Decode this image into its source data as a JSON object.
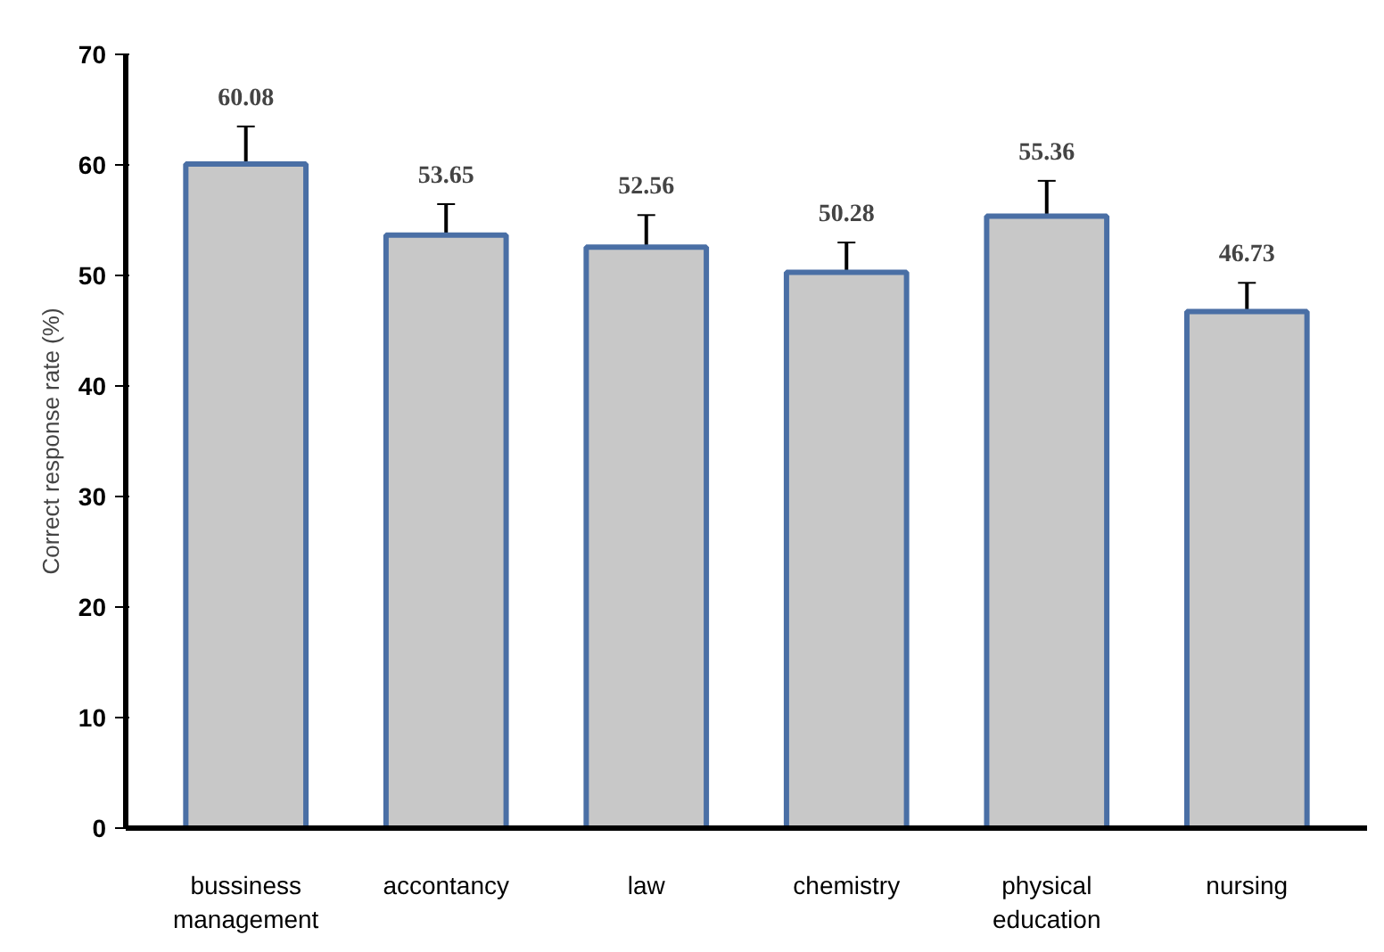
{
  "chart_data": {
    "type": "bar",
    "ylabel": "Correct response rate (%)",
    "categories": [
      "bussiness management",
      "accontancy",
      "law",
      "chemistry",
      "physical education",
      "nursing"
    ],
    "values": [
      60.08,
      53.65,
      52.56,
      50.28,
      55.36,
      46.73
    ],
    "errors": [
      3.4,
      2.8,
      2.9,
      2.7,
      3.2,
      2.6
    ],
    "color": "#c8c8c8",
    "ylim": [
      0,
      70
    ],
    "yticks": [
      0,
      10,
      20,
      30,
      40,
      50,
      60,
      70
    ],
    "grid": false,
    "data_labels": true
  }
}
